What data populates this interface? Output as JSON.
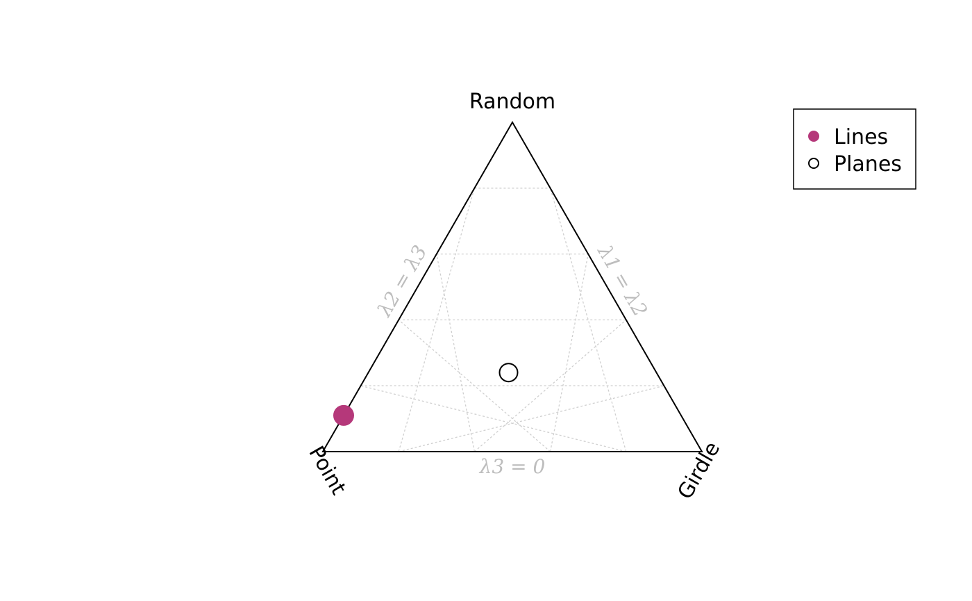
{
  "chart_data": {
    "type": "ternary-scatter",
    "title": "",
    "vertices": {
      "top": "Random",
      "left": "Point",
      "right": "Girdle"
    },
    "edge_labels": {
      "left": "λ2 = λ3",
      "right": "λ1 = λ2",
      "bottom": "λ3 = 0"
    },
    "grid": {
      "divisions": 5,
      "style": "dotted"
    },
    "series": [
      {
        "name": "Lines",
        "marker": "filled-circle",
        "color": "#b5387a",
        "point": {
          "point": 0.89,
          "girdle": 0.0,
          "random": 0.11
        }
      },
      {
        "name": "Planes",
        "marker": "open-circle",
        "color": "#000000",
        "point": {
          "point": 0.39,
          "girdle": 0.37,
          "random": 0.24
        }
      }
    ],
    "legend": {
      "position": "top-right",
      "items": [
        {
          "label": "Lines",
          "marker": "filled-circle",
          "color": "#b5387a"
        },
        {
          "label": "Planes",
          "marker": "open-circle",
          "color": "#000000"
        }
      ]
    }
  }
}
